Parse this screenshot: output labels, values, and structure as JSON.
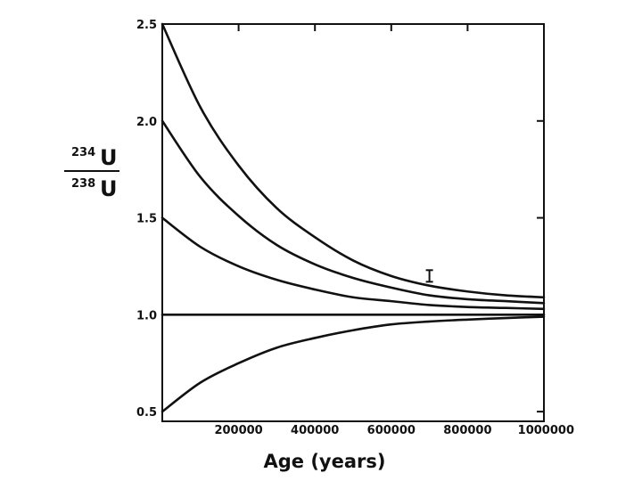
{
  "chart_data": {
    "type": "line",
    "xlabel": "Age (years)",
    "ylabel": {
      "numerator": {
        "superscript": "234",
        "symbol": "U"
      },
      "denominator": {
        "superscript": "238",
        "symbol": "U"
      }
    },
    "xlim": [
      0,
      1000000
    ],
    "ylim": [
      0.45,
      2.5
    ],
    "x_ticks": [
      200000,
      400000,
      600000,
      800000,
      1000000
    ],
    "x_tick_labels": [
      "200000",
      "400000",
      "600000",
      "800000",
      "1000000"
    ],
    "y_ticks": [
      0.5,
      1.0,
      1.5,
      2.0,
      2.5
    ],
    "y_tick_labels": [
      "0.5",
      "1.0",
      "1.5",
      "2.0",
      "2.5"
    ],
    "grid": false,
    "series": [
      {
        "x": [
          0,
          100000,
          200000,
          300000,
          400000,
          500000,
          600000,
          700000,
          800000,
          900000,
          1000000
        ],
        "values": [
          2.5,
          2.07,
          1.77,
          1.55,
          1.4,
          1.28,
          1.2,
          1.15,
          1.12,
          1.1,
          1.09
        ]
      },
      {
        "x": [
          0,
          100000,
          200000,
          300000,
          400000,
          500000,
          600000,
          700000,
          800000,
          900000,
          1000000
        ],
        "values": [
          2.0,
          1.71,
          1.51,
          1.36,
          1.26,
          1.19,
          1.14,
          1.1,
          1.08,
          1.07,
          1.06
        ]
      },
      {
        "x": [
          0,
          100000,
          200000,
          300000,
          400000,
          500000,
          600000,
          700000,
          800000,
          900000,
          1000000
        ],
        "values": [
          1.5,
          1.35,
          1.25,
          1.18,
          1.13,
          1.09,
          1.07,
          1.05,
          1.04,
          1.035,
          1.03
        ]
      },
      {
        "x": [
          0,
          100000,
          200000,
          300000,
          400000,
          500000,
          600000,
          700000,
          800000,
          900000,
          1000000
        ],
        "values": [
          1.0,
          1.0,
          1.0,
          1.0,
          1.0,
          1.0,
          1.0,
          1.0,
          1.0,
          1.0,
          1.0
        ]
      },
      {
        "x": [
          0,
          100000,
          200000,
          300000,
          400000,
          500000,
          600000,
          700000,
          800000,
          900000,
          1000000
        ],
        "values": [
          0.5,
          0.65,
          0.75,
          0.83,
          0.88,
          0.92,
          0.95,
          0.965,
          0.975,
          0.983,
          0.99
        ]
      }
    ],
    "error_bars": [
      {
        "x": 700000,
        "y_low": 1.17,
        "y_high": 1.23
      }
    ]
  }
}
